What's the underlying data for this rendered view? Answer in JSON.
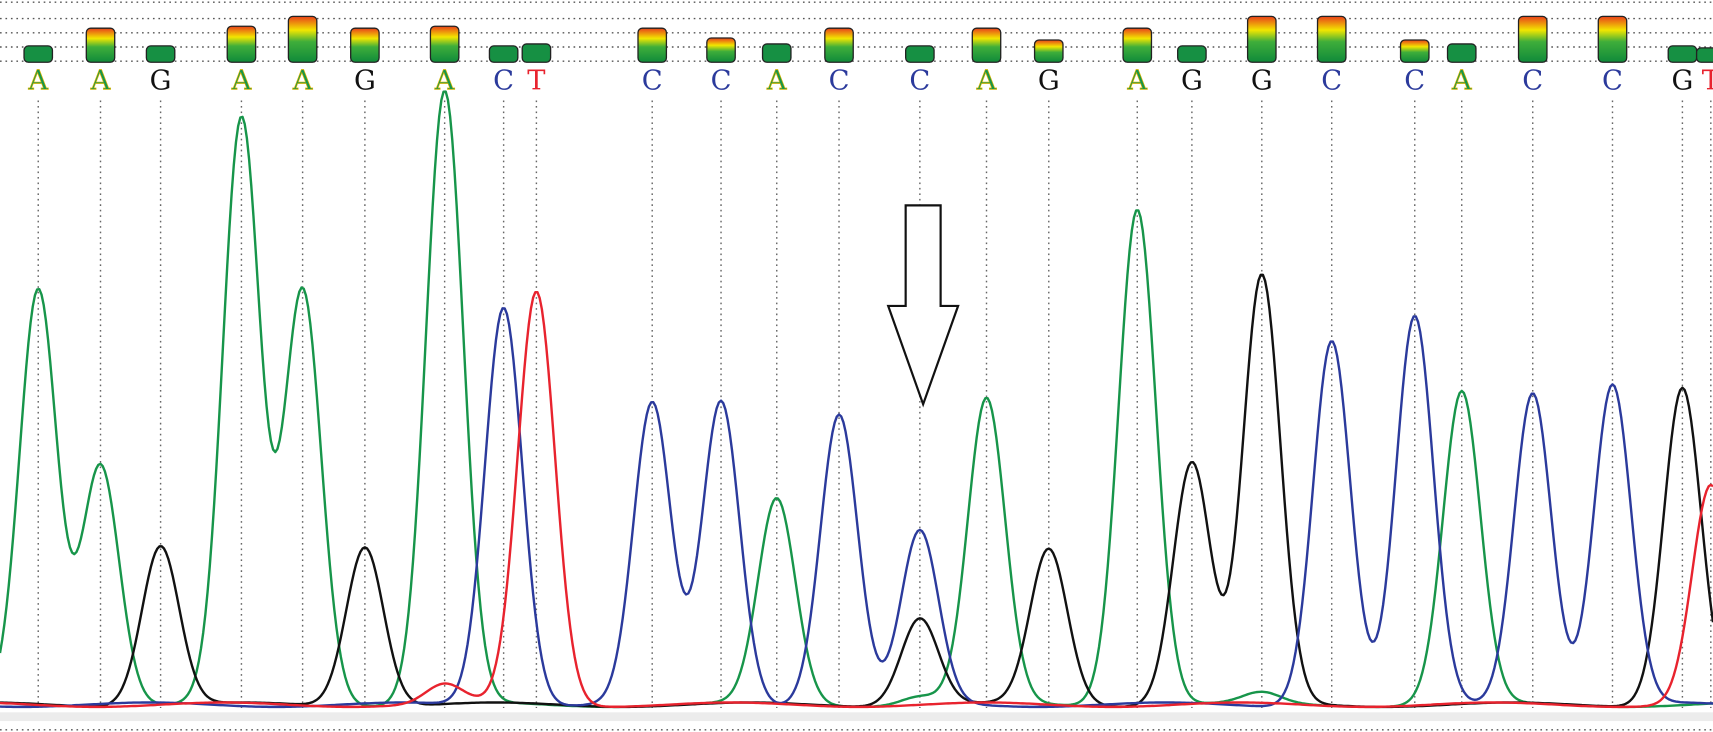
{
  "chart_data": {
    "type": "line",
    "subtype": "sequencing-chromatogram",
    "title": "",
    "xlabel": "",
    "ylabel": "",
    "grid": false,
    "legend": "none",
    "channel_colors": {
      "A": "#17954a",
      "C": "#2b3a9c",
      "G": "#111111",
      "T": "#e8232e"
    },
    "quality_gradient": [
      "#0f8a3a",
      "#f2e600",
      "#e8401a"
    ],
    "annotation": {
      "type": "arrow-down",
      "at_base": 14
    },
    "bases": [
      {
        "call": "A",
        "quality": 0.25,
        "peaks": {
          "A": 380
        }
      },
      {
        "call": "A",
        "quality": 0.7,
        "peaks": {
          "A": 221
        }
      },
      {
        "call": "G",
        "quality": 0.25,
        "peaks": {
          "G": 146
        }
      },
      {
        "call": "A",
        "quality": 0.75,
        "peaks": {
          "A": 535
        }
      },
      {
        "call": "A",
        "quality": 1.0,
        "peaks": {
          "A": 380
        }
      },
      {
        "call": "G",
        "quality": 0.7,
        "peaks": {
          "G": 146
        }
      },
      {
        "call": "A",
        "quality": 0.75,
        "peaks": {
          "A": 561,
          "T": 18
        }
      },
      {
        "call": "C",
        "quality": 0.25,
        "peaks": {
          "C": 365
        }
      },
      {
        "call": "T",
        "quality": 0.3,
        "peaks": {
          "T": 378
        }
      },
      {
        "call": "C",
        "quality": 0.7,
        "peaks": {
          "C": 275
        }
      },
      {
        "call": "C",
        "quality": 0.45,
        "peaks": {
          "C": 278
        }
      },
      {
        "call": "A",
        "quality": 0.3,
        "peaks": {
          "A": 188
        }
      },
      {
        "call": "C",
        "quality": 0.7,
        "peaks": {
          "C": 266
        }
      },
      {
        "call": "C",
        "quality": 0.25,
        "peaks": {
          "C": 158,
          "G": 80,
          "A": 8
        }
      },
      {
        "call": "A",
        "quality": 0.7,
        "peaks": {
          "A": 279
        }
      },
      {
        "call": "G",
        "quality": 0.4,
        "peaks": {
          "G": 142
        }
      },
      {
        "call": "A",
        "quality": 0.7,
        "peaks": {
          "A": 455
        }
      },
      {
        "call": "G",
        "quality": 0.25,
        "peaks": {
          "G": 222
        }
      },
      {
        "call": "G",
        "quality": 1.0,
        "peaks": {
          "G": 392,
          "A": 10
        }
      },
      {
        "call": "C",
        "quality": 1.0,
        "peaks": {
          "C": 334
        }
      },
      {
        "call": "C",
        "quality": 0.4,
        "peaks": {
          "C": 354
        }
      },
      {
        "call": "A",
        "quality": 0.3,
        "peaks": {
          "A": 286
        }
      },
      {
        "call": "C",
        "quality": 1.0,
        "peaks": {
          "C": 287
        }
      },
      {
        "call": "C",
        "quality": 1.0,
        "peaks": {
          "C": 293
        }
      },
      {
        "call": "G",
        "quality": 0.25,
        "peaks": {
          "G": 291
        }
      },
      {
        "call": "T",
        "quality": 0.2,
        "peaks": {
          "T": 200
        }
      }
    ]
  }
}
